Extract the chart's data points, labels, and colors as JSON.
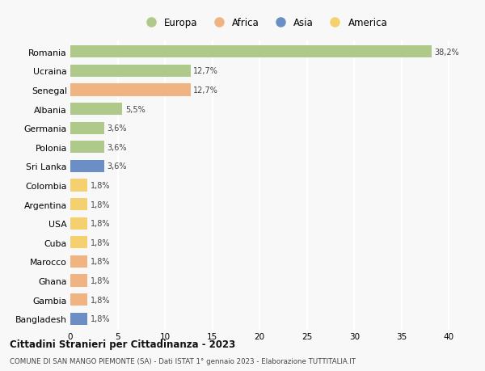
{
  "countries": [
    "Romania",
    "Ucraina",
    "Senegal",
    "Albania",
    "Germania",
    "Polonia",
    "Sri Lanka",
    "Colombia",
    "Argentina",
    "USA",
    "Cuba",
    "Marocco",
    "Ghana",
    "Gambia",
    "Bangladesh"
  ],
  "values": [
    38.2,
    12.7,
    12.7,
    5.5,
    3.6,
    3.6,
    3.6,
    1.8,
    1.8,
    1.8,
    1.8,
    1.8,
    1.8,
    1.8,
    1.8
  ],
  "labels": [
    "38,2%",
    "12,7%",
    "12,7%",
    "5,5%",
    "3,6%",
    "3,6%",
    "3,6%",
    "1,8%",
    "1,8%",
    "1,8%",
    "1,8%",
    "1,8%",
    "1,8%",
    "1,8%",
    "1,8%"
  ],
  "continents": [
    "Europa",
    "Europa",
    "Africa",
    "Europa",
    "Europa",
    "Europa",
    "Asia",
    "America",
    "America",
    "America",
    "America",
    "Africa",
    "Africa",
    "Africa",
    "Asia"
  ],
  "continent_colors": {
    "Europa": "#aec98a",
    "Africa": "#f0b482",
    "Asia": "#6b8fc4",
    "America": "#f5d06e"
  },
  "legend_order": [
    "Europa",
    "Africa",
    "Asia",
    "America"
  ],
  "xlim": [
    0,
    41
  ],
  "xticks": [
    0,
    5,
    10,
    15,
    20,
    25,
    30,
    35,
    40
  ],
  "title_bold": "Cittadini Stranieri per Cittadinanza - 2023",
  "subtitle": "COMUNE DI SAN MANGO PIEMONTE (SA) - Dati ISTAT 1° gennaio 2023 - Elaborazione TUTTITALIA.IT",
  "bg_color": "#f8f8f8",
  "grid_color": "#ffffff",
  "bar_height": 0.65
}
